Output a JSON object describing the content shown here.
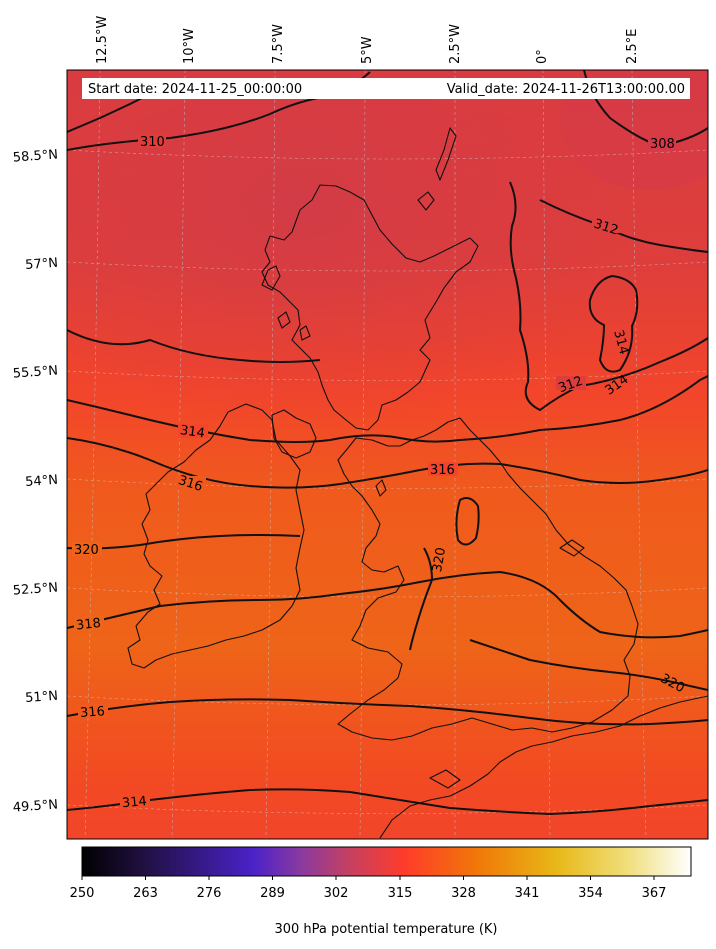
{
  "header": {
    "start_date": "Start date: 2024-11-25_00:00:00",
    "valid_date": "Valid_date: 2024-11-26T13:00:00.00"
  },
  "axes": {
    "longitude_labels": [
      "12.5°W",
      "10°W",
      "7.5°W",
      "5°W",
      "2.5°W",
      "0°",
      "2.5°E"
    ],
    "latitude_labels": [
      "58.5°N",
      "57°N",
      "55.5°N",
      "54°N",
      "52.5°N",
      "51°N",
      "49.5°N"
    ]
  },
  "contour_labels": [
    "308",
    "310",
    "312",
    "314",
    "316",
    "318",
    "320"
  ],
  "colorbar": {
    "ticks": [
      "250",
      "263",
      "276",
      "289",
      "302",
      "315",
      "328",
      "341",
      "354",
      "367"
    ],
    "title": "300 hPa potential temperature (K)",
    "colormap": [
      "#000000",
      "#2a1660",
      "#4a22c8",
      "#8a3aa0",
      "#c64060",
      "#ff3c2a",
      "#f07808",
      "#e8b818",
      "#f0e080",
      "#ffffff"
    ]
  },
  "colors": {
    "north_field": "#d93b41",
    "central_field": "#f2452b",
    "south_field": "#ee6418",
    "contour": "#000000"
  }
}
